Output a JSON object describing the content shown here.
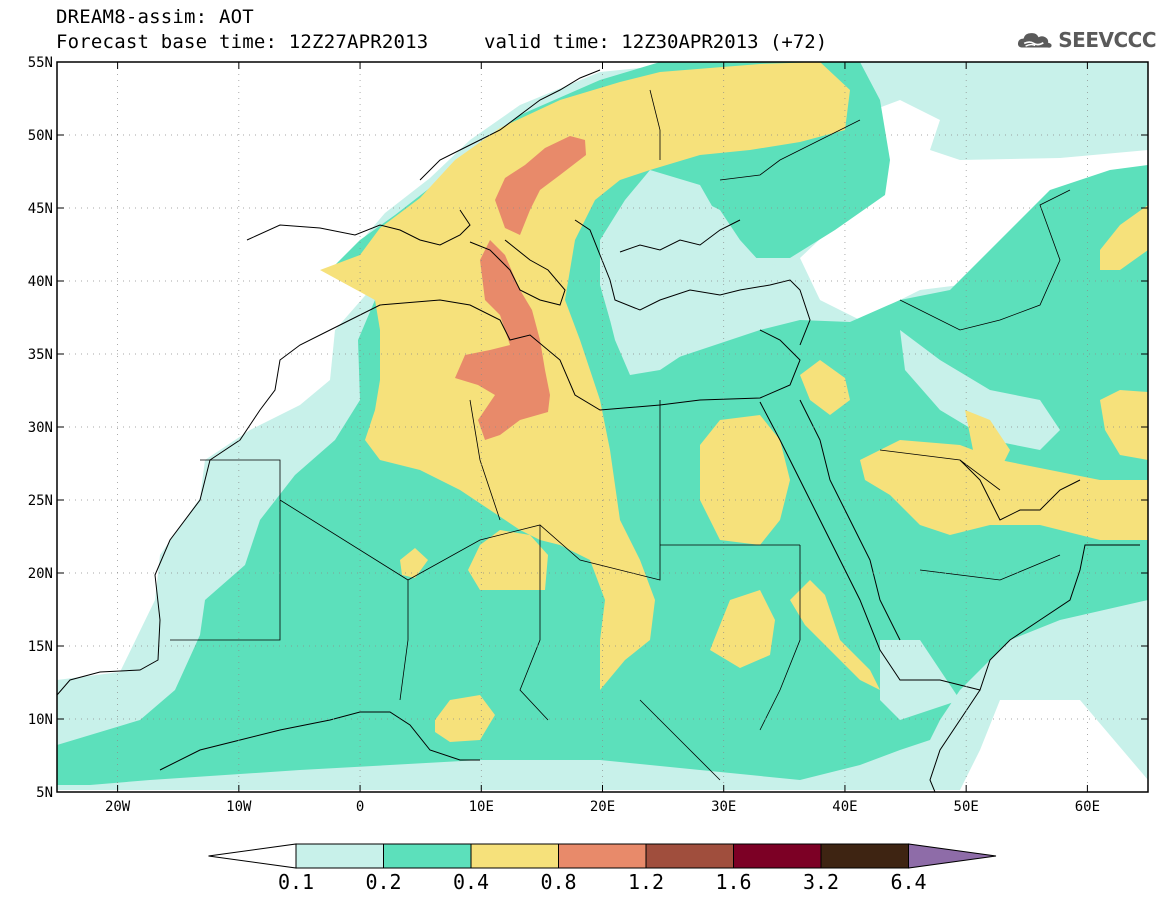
{
  "header": {
    "title_line1": "DREAM8-assim: AOT",
    "title_line2": "Forecast base time: 12Z27APR2013",
    "valid_time": "valid time: 12Z30APR2013 (+72)",
    "logo_text": "SEEVCCC",
    "logo_icon": "cloud-logo-icon"
  },
  "map": {
    "lon_range": [
      -25,
      65
    ],
    "lat_range": [
      5,
      55
    ],
    "lat_ticks": [
      {
        "value": 55,
        "label": "55N"
      },
      {
        "value": 50,
        "label": "50N"
      },
      {
        "value": 45,
        "label": "45N"
      },
      {
        "value": 40,
        "label": "40N"
      },
      {
        "value": 35,
        "label": "35N"
      },
      {
        "value": 30,
        "label": "30N"
      },
      {
        "value": 25,
        "label": "25N"
      },
      {
        "value": 20,
        "label": "20N"
      },
      {
        "value": 15,
        "label": "15N"
      },
      {
        "value": 10,
        "label": "10N"
      },
      {
        "value": 5,
        "label": "5N"
      }
    ],
    "lon_ticks": [
      {
        "value": -20,
        "label": "20W"
      },
      {
        "value": -10,
        "label": "10W"
      },
      {
        "value": 0,
        "label": "0"
      },
      {
        "value": 10,
        "label": "10E"
      },
      {
        "value": 20,
        "label": "20E"
      },
      {
        "value": 30,
        "label": "30E"
      },
      {
        "value": 40,
        "label": "40E"
      },
      {
        "value": 50,
        "label": "50E"
      },
      {
        "value": 60,
        "label": "60E"
      }
    ],
    "grid": true,
    "field": "AOT"
  },
  "colorbar": {
    "boundaries": [
      "0.1",
      "0.2",
      "0.4",
      "0.8",
      "1.2",
      "1.6",
      "3.2",
      "6.4"
    ],
    "colors": [
      "#ffffff",
      "#c8f1ea",
      "#5ce0bb",
      "#f6e17b",
      "#e88a6a",
      "#a04e3d",
      "#7c0025",
      "#3e2412",
      "#8e6ca8"
    ]
  }
}
